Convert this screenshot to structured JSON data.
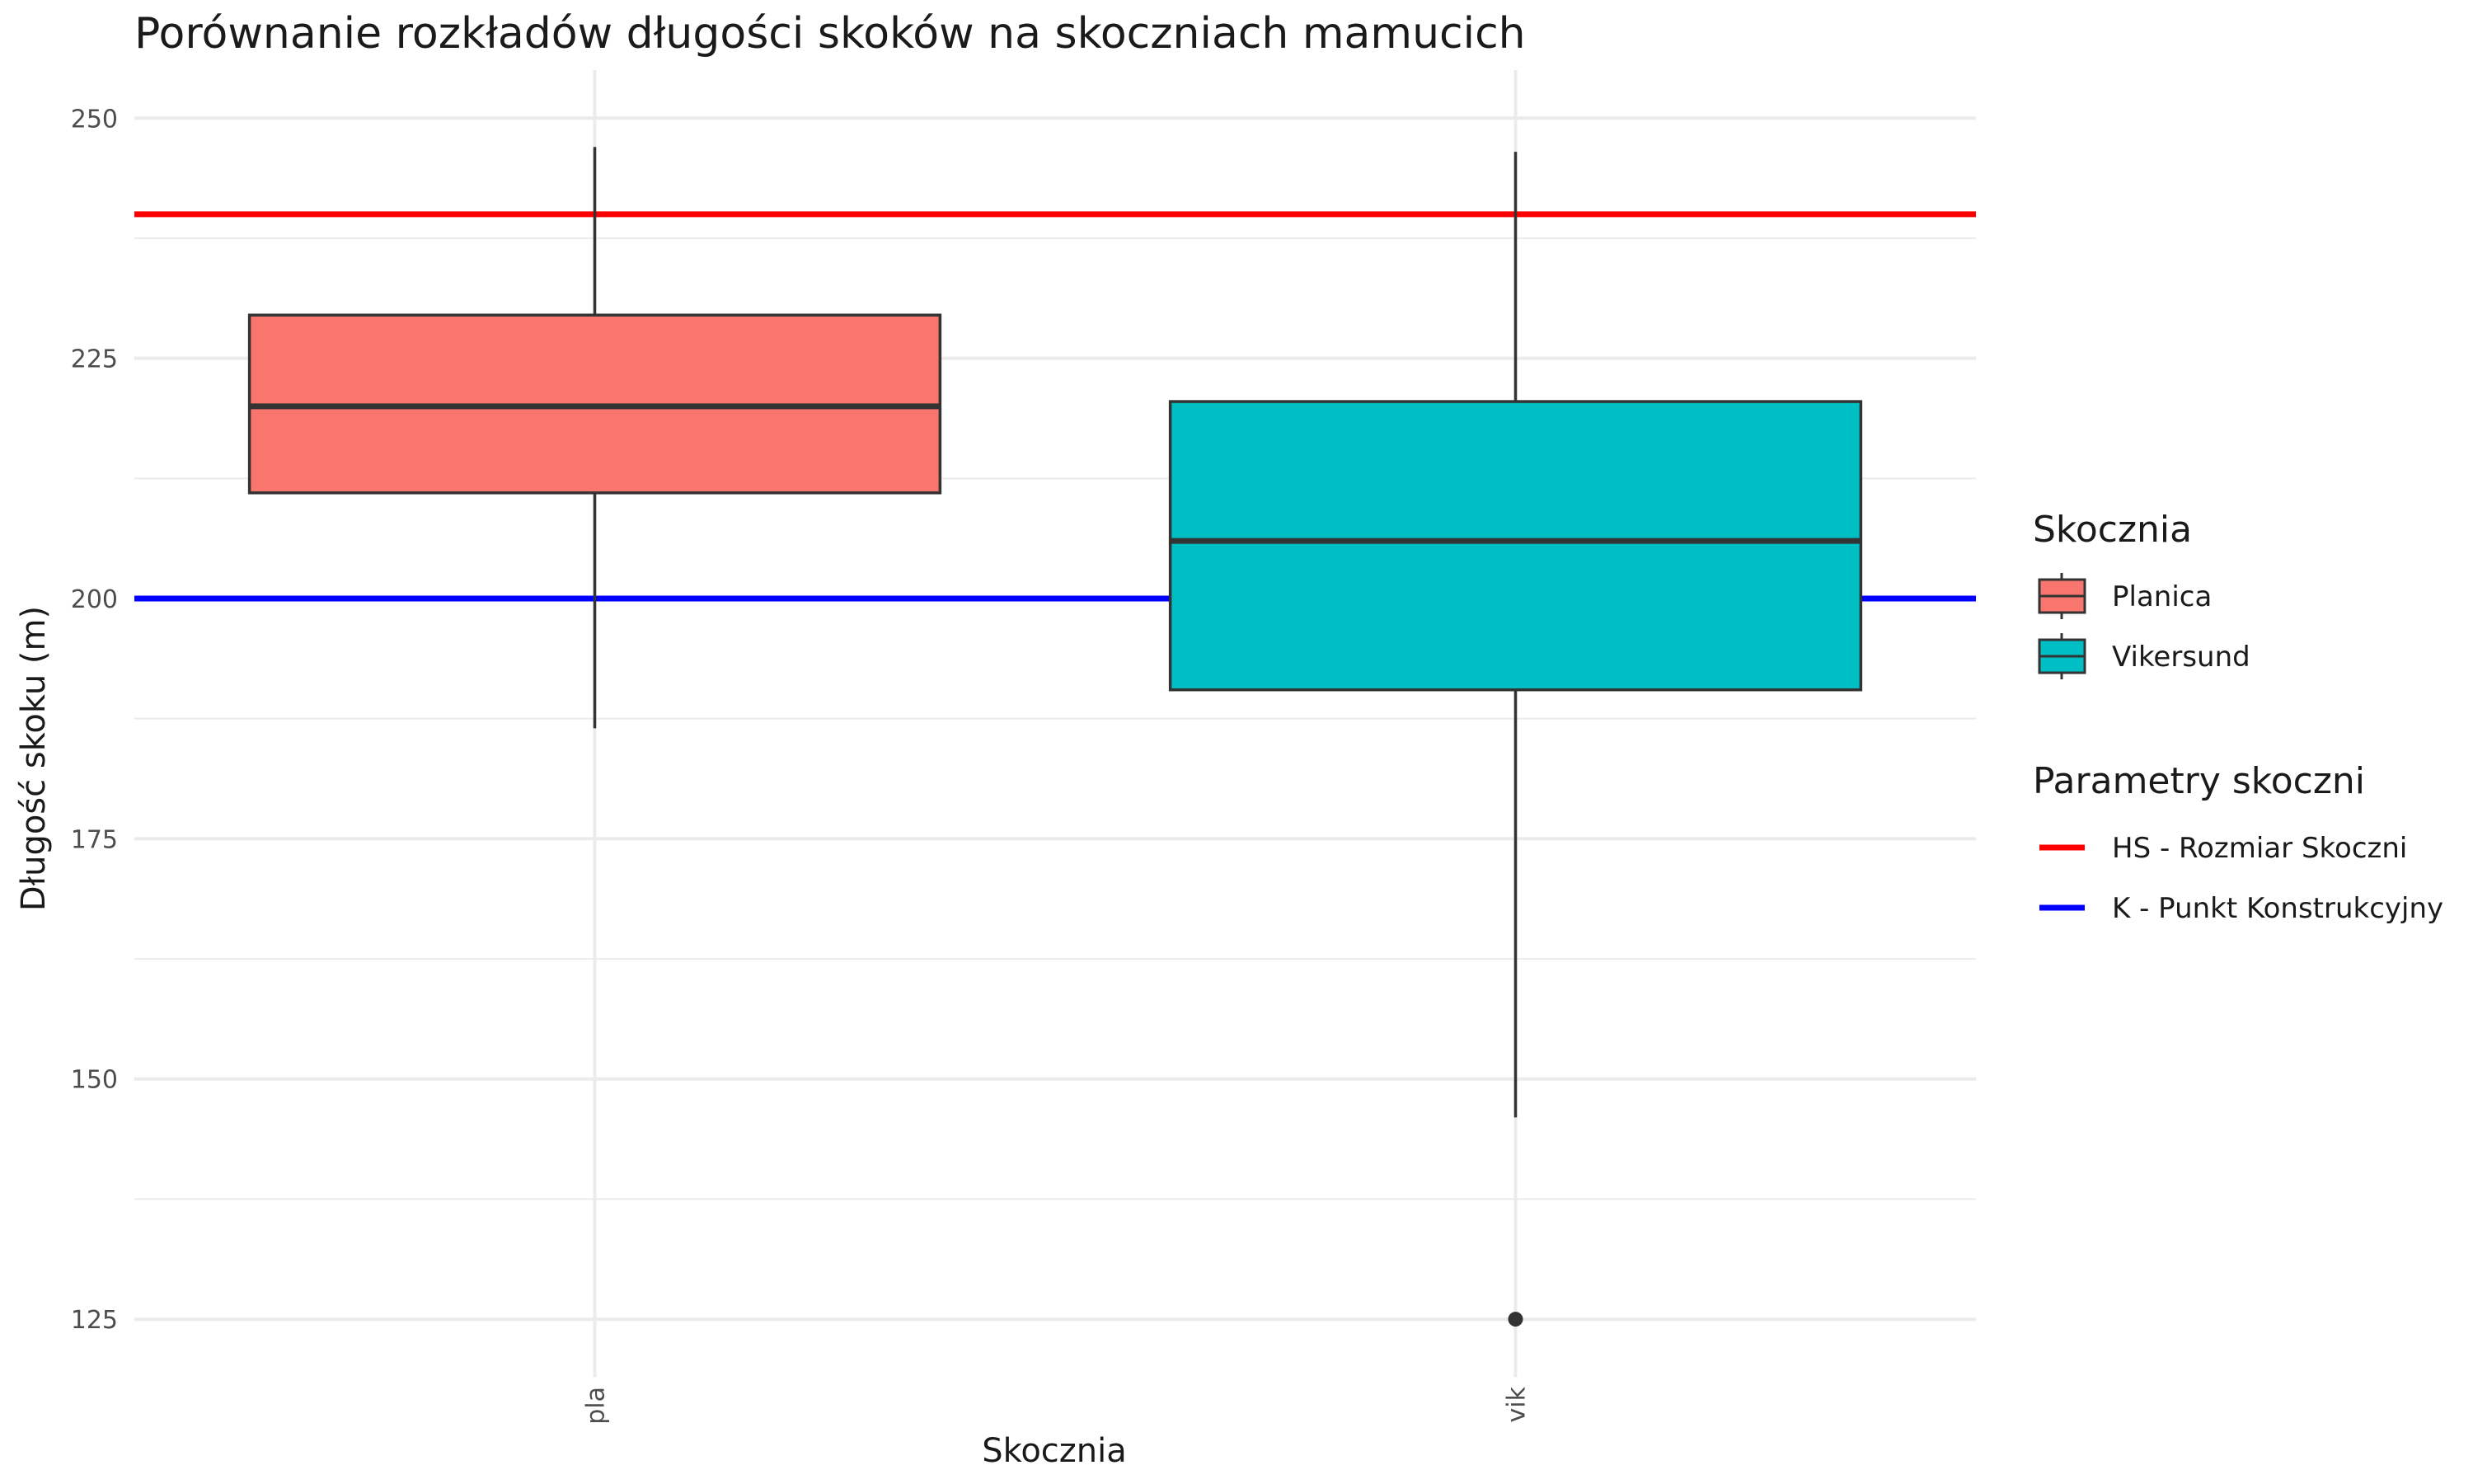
{
  "chart_data": {
    "type": "box",
    "title": "Porównanie rozkładów długości skoków na skoczniach mamucich",
    "xlabel": "Skocznia",
    "ylabel": "Długość skoku (m)",
    "ylim": [
      119,
      255
    ],
    "y_ticks": [
      125,
      150,
      175,
      200,
      225,
      250
    ],
    "categories": [
      "pla",
      "vik"
    ],
    "grid": true,
    "boxes": [
      {
        "category": "pla",
        "group": "Planica",
        "min": 186.5,
        "q1": 211,
        "median": 220,
        "q3": 229.5,
        "max": 247,
        "outliers": []
      },
      {
        "category": "vik",
        "group": "Vikersund",
        "min": 146,
        "q1": 190.5,
        "median": 206,
        "q3": 220.5,
        "max": 246.5,
        "outliers": [
          125
        ]
      }
    ],
    "reference_lines": [
      {
        "name": "HS - Rozmiar Skoczni",
        "y": 240,
        "color": "#ff0000"
      },
      {
        "name": "K - Punkt Konstrukcyjny",
        "y": 200,
        "color": "#0000ff"
      }
    ],
    "legend": {
      "position": "right",
      "fill_title": "Skocznia",
      "fill_items": [
        {
          "label": "Planica",
          "color": "#f8766d"
        },
        {
          "label": "Vikersund",
          "color": "#00bfc4"
        }
      ],
      "line_title": "Parametry skoczni",
      "line_items": [
        {
          "label": "HS - Rozmiar Skoczni",
          "color": "#ff0000"
        },
        {
          "label": "K - Punkt Konstrukcyjny",
          "color": "#0000ff"
        }
      ]
    }
  }
}
